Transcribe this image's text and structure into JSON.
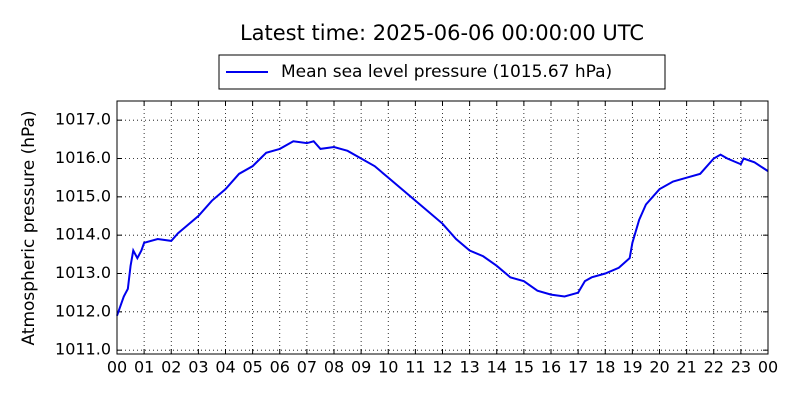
{
  "chart_data": {
    "type": "line",
    "title": "Latest time: 2025-06-06 00:00:00 UTC",
    "y_label": "Atmospheric pressure (hPa)",
    "x": [
      0,
      0.25,
      0.4,
      0.5,
      0.6,
      0.75,
      0.9,
      1.0,
      1.5,
      2.0,
      2.25,
      2.5,
      3,
      3.5,
      4,
      4.5,
      5,
      5.5,
      6,
      6.5,
      7,
      7.25,
      7.5,
      8,
      8.5,
      9,
      9.5,
      10,
      10.5,
      11,
      11.5,
      12,
      12.5,
      13,
      13.5,
      14,
      14.5,
      15,
      15.5,
      16,
      16.5,
      17,
      17.25,
      17.5,
      18,
      18.5,
      18.9,
      19.0,
      19.25,
      19.5,
      20,
      20.5,
      21,
      21.5,
      22,
      22.25,
      22.5,
      23,
      23.1,
      23.5,
      24
    ],
    "series": [
      {
        "name": "Mean sea level pressure (1015.67 hPa)",
        "color": "#0000ee",
        "values": [
          1011.9,
          1012.4,
          1012.6,
          1013.2,
          1013.6,
          1013.4,
          1013.6,
          1013.8,
          1013.9,
          1013.85,
          1014.05,
          1014.2,
          1014.5,
          1014.9,
          1015.2,
          1015.6,
          1015.8,
          1016.15,
          1016.25,
          1016.45,
          1016.4,
          1016.45,
          1016.25,
          1016.3,
          1016.2,
          1016.0,
          1015.8,
          1015.5,
          1015.2,
          1014.9,
          1014.6,
          1014.3,
          1013.9,
          1013.6,
          1013.45,
          1013.2,
          1012.9,
          1012.8,
          1012.55,
          1012.45,
          1012.4,
          1012.5,
          1012.8,
          1012.9,
          1013.0,
          1013.15,
          1013.4,
          1013.8,
          1014.4,
          1014.8,
          1015.2,
          1015.4,
          1015.5,
          1015.6,
          1016.0,
          1016.1,
          1016.0,
          1015.85,
          1016.0,
          1015.9,
          1015.67
        ]
      }
    ],
    "xlim": [
      0,
      24
    ],
    "xticks": [
      {
        "value": 0,
        "label": "00"
      },
      {
        "value": 1,
        "label": "01"
      },
      {
        "value": 2,
        "label": "02"
      },
      {
        "value": 3,
        "label": "03"
      },
      {
        "value": 4,
        "label": "04"
      },
      {
        "value": 5,
        "label": "05"
      },
      {
        "value": 6,
        "label": "06"
      },
      {
        "value": 7,
        "label": "07"
      },
      {
        "value": 8,
        "label": "08"
      },
      {
        "value": 9,
        "label": "09"
      },
      {
        "value": 10,
        "label": "10"
      },
      {
        "value": 11,
        "label": "11"
      },
      {
        "value": 12,
        "label": "12"
      },
      {
        "value": 13,
        "label": "13"
      },
      {
        "value": 14,
        "label": "14"
      },
      {
        "value": 15,
        "label": "15"
      },
      {
        "value": 16,
        "label": "16"
      },
      {
        "value": 17,
        "label": "17"
      },
      {
        "value": 18,
        "label": "18"
      },
      {
        "value": 19,
        "label": "19"
      },
      {
        "value": 20,
        "label": "20"
      },
      {
        "value": 21,
        "label": "21"
      },
      {
        "value": 22,
        "label": "22"
      },
      {
        "value": 23,
        "label": "23"
      },
      {
        "value": 24,
        "label": "00"
      }
    ],
    "ylim": [
      1010.9,
      1017.5
    ],
    "yticks": [
      {
        "value": 1011,
        "label": "1011.0"
      },
      {
        "value": 1012,
        "label": "1012.0"
      },
      {
        "value": 1013,
        "label": "1013.0"
      },
      {
        "value": 1014,
        "label": "1014.0"
      },
      {
        "value": 1015,
        "label": "1015.0"
      },
      {
        "value": 1016,
        "label": "1016.0"
      },
      {
        "value": 1017,
        "label": "1017.0"
      }
    ],
    "grid": true,
    "legend": "top"
  }
}
